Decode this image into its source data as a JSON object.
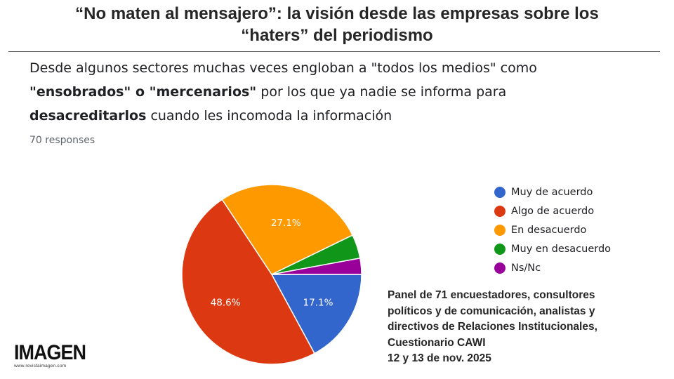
{
  "header": {
    "title_line1": "“No maten al mensajero”: la visión desde las empresas sobre los",
    "title_line2": "“haters” del periodismo"
  },
  "question": {
    "p1": "Desde algunos sectores muchas veces engloban a \"todos los medios\" como ",
    "b1": "\"ensobrados\" o \"mercenarios\"",
    "p2": " por los que ya nadie se informa para ",
    "b2": "desacreditarlos",
    "p3": " cuando les incomoda la información",
    "responses": "70 responses"
  },
  "chart_data": {
    "type": "pie",
    "slices": [
      {
        "label": "Muy de acuerdo",
        "value": 17.1,
        "display": "17.1%",
        "color": "#3366cc"
      },
      {
        "label": "Algo de acuerdo",
        "value": 48.6,
        "display": "48.6%",
        "color": "#dc3912"
      },
      {
        "label": "En desacuerdo",
        "value": 27.1,
        "display": "27.1%",
        "color": "#ff9900"
      },
      {
        "label": "Muy en desacuerdo",
        "value": 4.3,
        "display": "",
        "color": "#109618"
      },
      {
        "label": "Ns/Nc",
        "value": 2.9,
        "display": "",
        "color": "#990099"
      }
    ],
    "start": "3 o'clock, clockwise",
    "legend_position": "right"
  },
  "source": {
    "line1": "Panel de 71 encuestadores, consultores",
    "line2": "políticos y de comunicación, analistas y",
    "line3": "directivos de Relaciones Institucionales,",
    "line4": "Cuestionario CAWI",
    "line5": "12 y 13 de nov. 2025"
  },
  "logo": {
    "word": "IMAGEN",
    "url": "www.revistaimagen.com"
  }
}
